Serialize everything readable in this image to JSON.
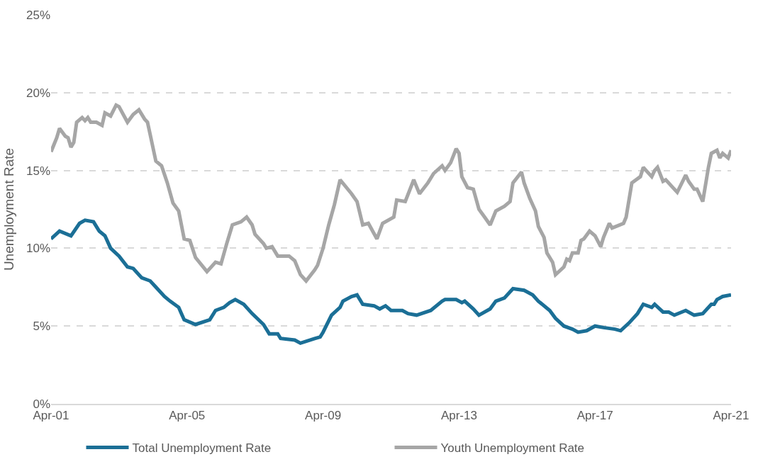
{
  "chart_data": {
    "type": "line",
    "ylabel": "Unemployment Rate",
    "xlim": [
      "2001-04",
      "2021-04"
    ],
    "xticks": [
      {
        "value": "2001-04",
        "label": "Apr-01"
      },
      {
        "value": "2005-04",
        "label": "Apr-05"
      },
      {
        "value": "2009-04",
        "label": "Apr-09"
      },
      {
        "value": "2013-04",
        "label": "Apr-13"
      },
      {
        "value": "2017-04",
        "label": "Apr-17"
      },
      {
        "value": "2021-04",
        "label": "Apr-21"
      }
    ],
    "ylim": [
      0,
      25
    ],
    "yticks": [
      {
        "value": 0,
        "label": "0%"
      },
      {
        "value": 5,
        "label": "5%"
      },
      {
        "value": 10,
        "label": "10%"
      },
      {
        "value": 15,
        "label": "15%"
      },
      {
        "value": 20,
        "label": "20%"
      },
      {
        "value": 25,
        "label": "25%"
      }
    ],
    "grid": "y",
    "legend": "bottom",
    "marker": "none",
    "line_style": "solid",
    "series": [
      {
        "name": "Total Unemployment Rate",
        "color": "#1b6f96",
        "x": [
          "2001-04",
          "2001-07",
          "2001-11",
          "2002-02",
          "2002-04",
          "2002-07",
          "2002-09",
          "2002-11",
          "2003-01",
          "2003-04",
          "2003-07",
          "2003-09",
          "2003-12",
          "2004-03",
          "2004-05",
          "2004-08",
          "2004-10",
          "2005-01",
          "2005-03",
          "2005-07",
          "2005-12",
          "2006-02",
          "2006-05",
          "2006-07",
          "2006-09",
          "2006-12",
          "2007-03",
          "2007-07",
          "2007-09",
          "2007-12",
          "2008-01",
          "2008-06",
          "2008-08",
          "2009-01",
          "2009-03",
          "2009-04",
          "2009-07",
          "2009-10",
          "2009-11",
          "2010-02",
          "2010-04",
          "2010-06",
          "2010-10",
          "2010-12",
          "2011-02",
          "2011-04",
          "2011-08",
          "2011-10",
          "2012-01",
          "2012-06",
          "2012-10",
          "2012-11",
          "2013-03",
          "2013-05",
          "2013-06",
          "2013-09",
          "2013-11",
          "2014-03",
          "2014-05",
          "2014-08",
          "2014-11",
          "2015-03",
          "2015-06",
          "2015-08",
          "2015-12",
          "2016-02",
          "2016-05",
          "2016-08",
          "2016-10",
          "2017-01",
          "2017-04",
          "2017-07",
          "2017-11",
          "2018-01",
          "2018-04",
          "2018-07",
          "2018-09",
          "2018-12",
          "2019-01",
          "2019-04",
          "2019-06",
          "2019-08",
          "2019-12",
          "2020-03",
          "2020-06",
          "2020-09",
          "2020-10",
          "2020-11",
          "2021-01",
          "2021-04"
        ],
        "values": [
          10.6,
          11.1,
          10.8,
          11.6,
          11.8,
          11.7,
          11.1,
          10.8,
          10.0,
          9.5,
          8.8,
          8.7,
          8.1,
          7.9,
          7.5,
          6.9,
          6.6,
          6.2,
          5.4,
          5.1,
          5.4,
          6.0,
          6.2,
          6.5,
          6.7,
          6.4,
          5.8,
          5.1,
          4.5,
          4.5,
          4.2,
          4.1,
          3.9,
          4.2,
          4.3,
          4.6,
          5.7,
          6.2,
          6.6,
          6.9,
          7.0,
          6.4,
          6.3,
          6.1,
          6.3,
          6.0,
          6.0,
          5.8,
          5.7,
          6.0,
          6.6,
          6.7,
          6.7,
          6.5,
          6.6,
          6.1,
          5.7,
          6.1,
          6.6,
          6.8,
          7.4,
          7.3,
          7.0,
          6.6,
          6.0,
          5.5,
          5.0,
          4.8,
          4.6,
          4.7,
          5.0,
          4.9,
          4.8,
          4.7,
          5.2,
          5.8,
          6.4,
          6.2,
          6.4,
          5.9,
          5.9,
          5.7,
          6.0,
          5.7,
          5.8,
          6.4,
          6.4,
          6.7,
          6.9,
          7.0
        ]
      },
      {
        "name": "Youth Unemployment Rate",
        "color": "#a6a6a6",
        "x": [
          "2001-04",
          "2001-06",
          "2001-07",
          "2001-09",
          "2001-10",
          "2001-11",
          "2001-12",
          "2002-01",
          "2002-03",
          "2002-04",
          "2002-05",
          "2002-06",
          "2002-08",
          "2002-10",
          "2002-11",
          "2003-01",
          "2003-03",
          "2003-04",
          "2003-07",
          "2003-09",
          "2003-11",
          "2004-01",
          "2004-02",
          "2004-03",
          "2004-05",
          "2004-07",
          "2004-09",
          "2004-11",
          "2005-01",
          "2005-03",
          "2005-05",
          "2005-07",
          "2005-11",
          "2006-02",
          "2006-04",
          "2006-06",
          "2006-08",
          "2006-11",
          "2007-01",
          "2007-03",
          "2007-04",
          "2007-07",
          "2007-08",
          "2007-10",
          "2007-12",
          "2008-02",
          "2008-04",
          "2008-06",
          "2008-08",
          "2008-10",
          "2009-01",
          "2009-02",
          "2009-04",
          "2009-06",
          "2009-08",
          "2009-10",
          "2010-02",
          "2010-04",
          "2010-06",
          "2010-08",
          "2010-11",
          "2011-01",
          "2011-05",
          "2011-06",
          "2011-09",
          "2011-12",
          "2012-02",
          "2012-05",
          "2012-07",
          "2012-10",
          "2012-11",
          "2013-01",
          "2013-03",
          "2013-04",
          "2013-05",
          "2013-07",
          "2013-09",
          "2013-11",
          "2014-01",
          "2014-03",
          "2014-05",
          "2014-08",
          "2014-10",
          "2014-11",
          "2015-02",
          "2015-03",
          "2015-05",
          "2015-07",
          "2015-08",
          "2015-10",
          "2015-11",
          "2016-01",
          "2016-02",
          "2016-05",
          "2016-06",
          "2016-07",
          "2016-08",
          "2016-10",
          "2016-11",
          "2016-12",
          "2017-02",
          "2017-04",
          "2017-06",
          "2017-07",
          "2017-09",
          "2017-10",
          "2018-02",
          "2018-03",
          "2018-05",
          "2018-08",
          "2018-09",
          "2018-10",
          "2018-12",
          "2019-01",
          "2019-02",
          "2019-04",
          "2019-05",
          "2019-07",
          "2019-09",
          "2019-12",
          "2020-01",
          "2020-03",
          "2020-04",
          "2020-06",
          "2020-08",
          "2020-09",
          "2020-11",
          "2020-12",
          "2021-01",
          "2021-03",
          "2021-04"
        ],
        "values": [
          16.2,
          17.1,
          17.7,
          17.2,
          17.1,
          16.5,
          16.8,
          18.1,
          18.4,
          18.2,
          18.4,
          18.1,
          18.1,
          17.9,
          18.7,
          18.5,
          19.2,
          19.1,
          18.1,
          18.6,
          18.9,
          18.3,
          18.1,
          17.3,
          15.6,
          15.3,
          14.2,
          12.9,
          12.4,
          10.6,
          10.5,
          9.4,
          8.5,
          9.1,
          9.0,
          10.3,
          11.5,
          11.7,
          12.0,
          11.5,
          10.9,
          10.3,
          10.0,
          10.1,
          9.5,
          9.5,
          9.5,
          9.2,
          8.3,
          7.9,
          8.6,
          8.9,
          10.0,
          11.5,
          12.8,
          14.4,
          13.5,
          13.0,
          11.5,
          11.6,
          10.6,
          11.6,
          12.0,
          13.1,
          13.0,
          14.4,
          13.5,
          14.2,
          14.8,
          15.3,
          15.0,
          15.5,
          16.4,
          16.1,
          14.6,
          13.9,
          13.8,
          12.5,
          12.0,
          11.5,
          12.4,
          12.7,
          13.0,
          14.2,
          14.9,
          14.2,
          13.2,
          12.4,
          11.4,
          10.7,
          9.7,
          9.1,
          8.3,
          8.8,
          9.3,
          9.2,
          9.7,
          9.7,
          10.5,
          10.6,
          11.1,
          10.8,
          10.1,
          10.7,
          11.6,
          11.3,
          11.6,
          12.0,
          14.2,
          14.6,
          15.2,
          15.0,
          14.6,
          15.0,
          15.2,
          14.3,
          14.4,
          14.0,
          13.6,
          14.7,
          14.3,
          13.8,
          13.8,
          13.0,
          15.2,
          16.1,
          16.3,
          15.8,
          16.1,
          15.8,
          16.3
        ]
      }
    ]
  }
}
